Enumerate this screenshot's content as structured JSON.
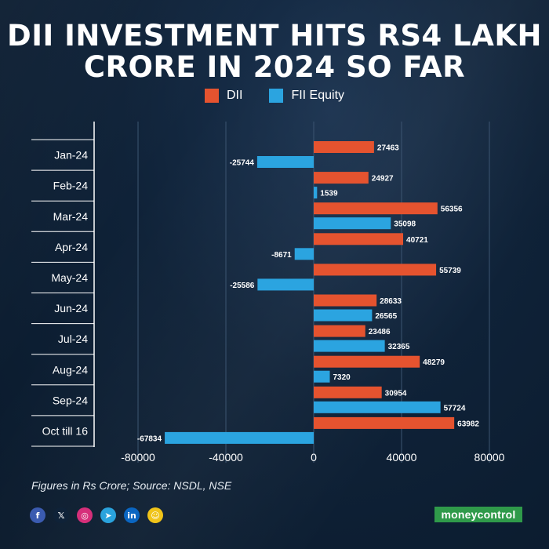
{
  "title": {
    "line1": "DII INVESTMENT HITS RS4 LAKH",
    "line2": "CRORE IN 2024 SO FAR"
  },
  "footer": {
    "note": "Figures in Rs Crore; Source: NSDL, NSE",
    "brand": "moneycontrol"
  },
  "social": [
    {
      "icon": "facebook-icon",
      "glyph": "f",
      "color": "#3b5bb0"
    },
    {
      "icon": "x-icon",
      "glyph": "𝕏",
      "color": "#0f2238"
    },
    {
      "icon": "instagram-icon",
      "glyph": "◎",
      "color": "#d62f7a"
    },
    {
      "icon": "telegram-icon",
      "glyph": "➤",
      "color": "#2aa3dd"
    },
    {
      "icon": "linkedin-icon",
      "glyph": "in",
      "color": "#0a66c2"
    },
    {
      "icon": "snapchat-icon",
      "glyph": "☺",
      "color": "#f0c419"
    }
  ],
  "colors": {
    "dii": "#e5532f",
    "fii": "#2ba4e0",
    "grid": "#3c5571",
    "axis": "#ffffff"
  },
  "chart_data": {
    "type": "bar",
    "orientation": "horizontal",
    "title": "DII INVESTMENT HITS RS4 LAKH CRORE IN 2024 SO FAR",
    "categories": [
      "Jan-24",
      "Feb-24",
      "Mar-24",
      "Apr-24",
      "May-24",
      "Jun-24",
      "Jul-24",
      "Aug-24",
      "Sep-24",
      "Oct till 16"
    ],
    "series": [
      {
        "name": "DII",
        "values": [
          27463,
          24927,
          56356,
          40721,
          55739,
          28633,
          23486,
          48279,
          30954,
          63982
        ]
      },
      {
        "name": "FII Equity",
        "values": [
          -25744,
          1539,
          35098,
          -8671,
          -25586,
          26565,
          32365,
          7320,
          57724,
          -67834
        ]
      }
    ],
    "xlim": [
      -100000,
      100000
    ],
    "xticks": [
      -80000,
      -40000,
      0,
      40000,
      80000
    ],
    "xtick_labels": [
      "-80000",
      "-40000",
      "0",
      "40000",
      "80000"
    ],
    "xlabel": "",
    "ylabel": "",
    "legend_position": "top-center",
    "grid": true
  }
}
